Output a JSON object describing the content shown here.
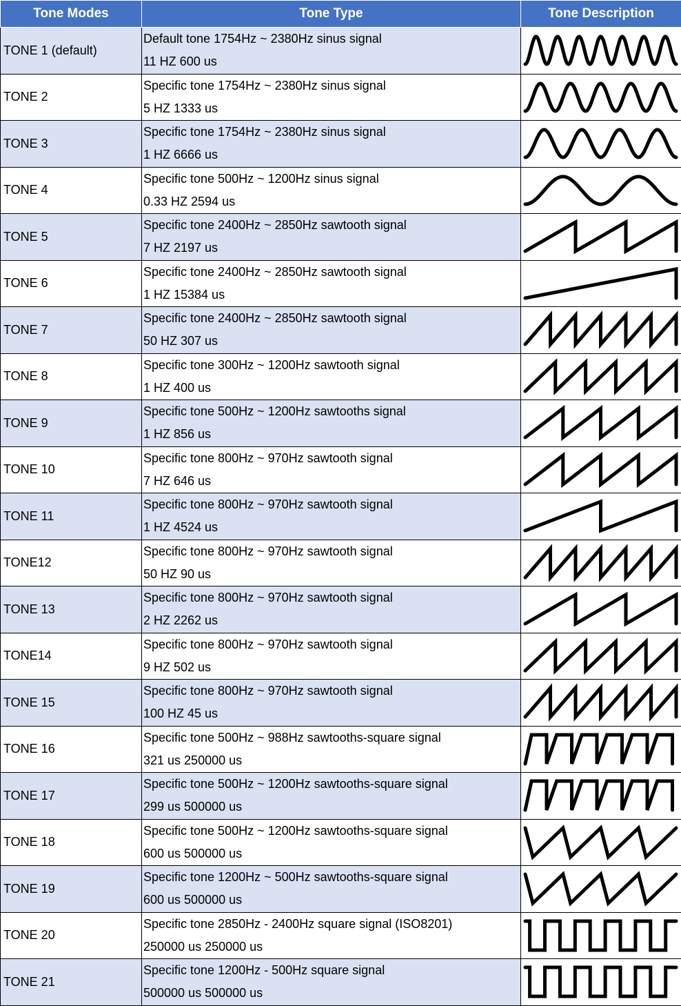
{
  "headers": {
    "mode": "Tone Modes",
    "type": "Tone Type",
    "desc": "Tone Description"
  },
  "header_color": "#4472c4",
  "band_color": "#d9e1f2",
  "rows": [
    {
      "mode": "TONE 1 (default)",
      "line1": "Default tone 1754Hz ~ 2380Hz sinus signal",
      "line2": "11 HZ 600 us",
      "wave": {
        "kind": "sine",
        "cycles": 7
      }
    },
    {
      "mode": "TONE 2",
      "line1": "Specific tone 1754Hz ~ 2380Hz sinus signal",
      "line2": "5 HZ 1333 us",
      "wave": {
        "kind": "sine",
        "cycles": 5
      }
    },
    {
      "mode": "TONE 3",
      "line1": "Specific tone 1754Hz ~ 2380Hz sinus signal",
      "line2": "1 HZ  6666 us",
      "wave": {
        "kind": "sine",
        "cycles": 4
      }
    },
    {
      "mode": "TONE 4",
      "line1": "Specific tone 500Hz ~ 1200Hz sinus signal",
      "line2": "0.33 HZ 2594 us",
      "wave": {
        "kind": "sine",
        "cycles": 2
      }
    },
    {
      "mode": "TONE 5",
      "line1": "Specific tone 2400Hz ~ 2850Hz sawtooth signal",
      "line2": "7 HZ 2197 us",
      "wave": {
        "kind": "saw",
        "cycles": 3
      }
    },
    {
      "mode": "TONE 6",
      "line1": "Specific tone 2400Hz ~ 2850Hz sawtooth signal",
      "line2": "1 HZ 15384 us",
      "wave": {
        "kind": "saw",
        "cycles": 1
      }
    },
    {
      "mode": "TONE 7",
      "line1": "Specific tone 2400Hz ~ 2850Hz sawtooth signal",
      "line2": "50 HZ 307 us",
      "wave": {
        "kind": "saw",
        "cycles": 6
      }
    },
    {
      "mode": "TONE 8",
      "line1": "Specific tone 300Hz ~ 1200Hz sawtooth signal",
      "line2": "1 HZ  400 us",
      "wave": {
        "kind": "saw",
        "cycles": 5
      }
    },
    {
      "mode": "TONE 9",
      "line1": "Specific tone 500Hz ~ 1200Hz sawtooths signal",
      "line2": "1 HZ 856 us",
      "wave": {
        "kind": "saw",
        "cycles": 4
      }
    },
    {
      "mode": "TONE 10",
      "line1": "Specific tone 800Hz ~ 970Hz sawtooth signal",
      "line2": "7 HZ 646 us",
      "wave": {
        "kind": "saw",
        "cycles": 4
      }
    },
    {
      "mode": "TONE 11",
      "line1": "Specific tone 800Hz ~ 970Hz sawtooth signal",
      "line2": "1 HZ 4524 us",
      "wave": {
        "kind": "saw",
        "cycles": 2
      }
    },
    {
      "mode": "TONE12",
      "line1": "Specific tone 800Hz ~ 970Hz sawtooth signal",
      "line2": "50 HZ  90 us",
      "wave": {
        "kind": "saw",
        "cycles": 6
      }
    },
    {
      "mode": "TONE 13",
      "line1": "Specific tone 800Hz ~ 970Hz sawtooth signal",
      "line2": "2 HZ 2262 us",
      "wave": {
        "kind": "saw",
        "cycles": 3
      }
    },
    {
      "mode": "TONE14",
      "line1": "Specific tone 800Hz ~ 970Hz sawtooth signal",
      "line2": "9 HZ 502 us",
      "wave": {
        "kind": "saw",
        "cycles": 5
      }
    },
    {
      "mode": "TONE 15",
      "line1": "Specific tone 800Hz ~ 970Hz sawtooth signal",
      "line2": "100 HZ  45 us",
      "wave": {
        "kind": "saw",
        "cycles": 6
      }
    },
    {
      "mode": "TONE 16",
      "line1": "Specific tone 500Hz ~ 988Hz sawtooths-square signal",
      "line2": "321 us 250000 us",
      "wave": {
        "kind": "sawsq",
        "cycles": 6
      }
    },
    {
      "mode": "TONE 17",
      "line1": "Specific tone 500Hz ~ 1200Hz sawtooths-square signal",
      "line2": "299 us 500000 us",
      "wave": {
        "kind": "sawsq",
        "cycles": 6
      }
    },
    {
      "mode": "TONE 18",
      "line1": "Specific tone 500Hz ~ 1200Hz sawtooths-square signal",
      "line2": "600 us 500000 us",
      "wave": {
        "kind": "sqsaw",
        "cycles": 4
      }
    },
    {
      "mode": "TONE 19",
      "line1": "Specific tone 1200Hz ~ 500Hz sawtooths-square signal",
      "line2": "600 us 500000 us",
      "wave": {
        "kind": "sqsaw",
        "cycles": 4
      }
    },
    {
      "mode": "TONE 20",
      "line1": "Specific tone 2850Hz - 2400Hz square signal (ISO8201)",
      "line2": "250000 us 250000 us",
      "wave": {
        "kind": "square",
        "cycles": 5
      }
    },
    {
      "mode": "TONE 21",
      "line1": "Specific tone 1200Hz - 500Hz square signal",
      "line2": "500000 us 500000 us",
      "wave": {
        "kind": "square",
        "cycles": 5
      }
    }
  ]
}
